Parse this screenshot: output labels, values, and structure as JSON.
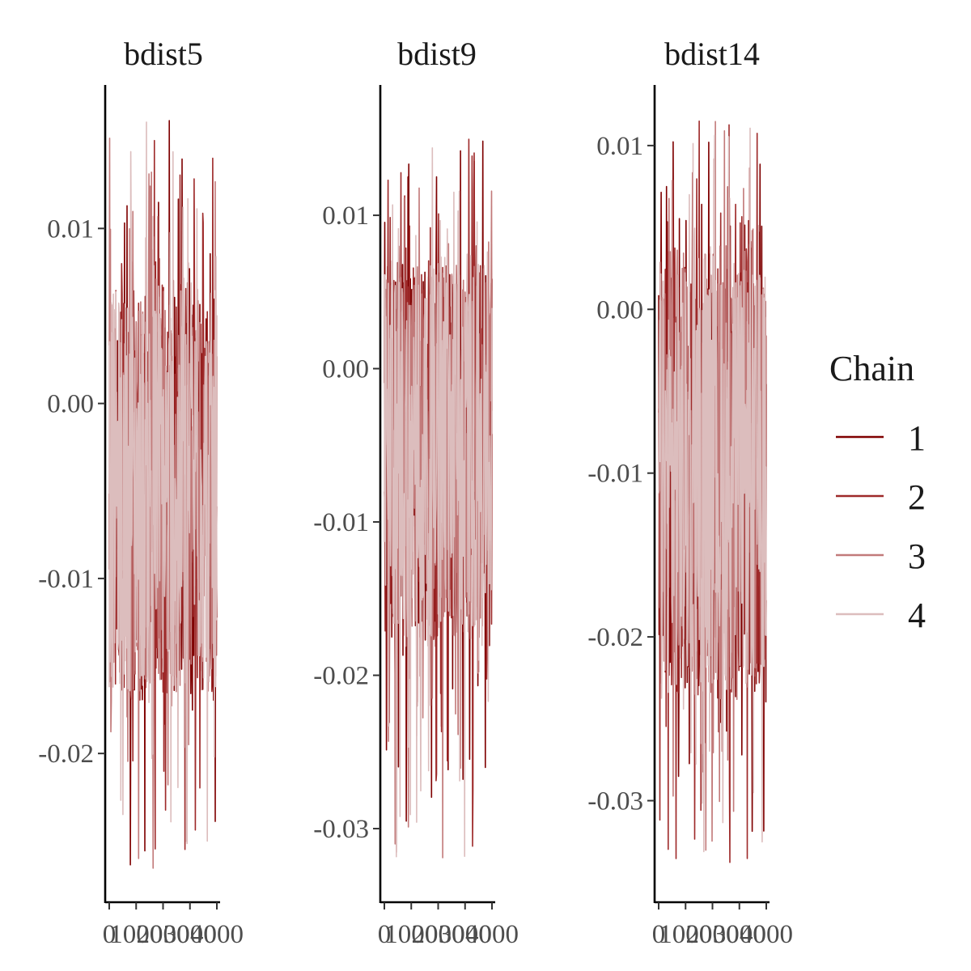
{
  "chart_data": {
    "type": "line",
    "x_ticks": [
      0,
      1000,
      2000,
      3000,
      4000
    ],
    "x_range": [
      0,
      4000
    ],
    "grid": false,
    "legend": {
      "title": "Chain",
      "placement": "right",
      "entries": [
        {
          "label": "1",
          "color": "#7f0000"
        },
        {
          "label": "2",
          "color": "#9e2a2a"
        },
        {
          "label": "3",
          "color": "#c27a7a"
        },
        {
          "label": "4",
          "color": "#dcbdbd"
        }
      ]
    },
    "panels": [
      {
        "title": "bdist5",
        "ylim": [
          -0.0285,
          0.0182
        ],
        "y_ticks": [
          0.01,
          0.0,
          -0.01,
          -0.02
        ],
        "y_tick_labels": [
          "0.01",
          "0.00",
          "-0.01",
          "-0.02"
        ],
        "core_range": [
          -0.0165,
          0.0065
        ],
        "max_excursion": [
          -0.0275,
          0.0163
        ]
      },
      {
        "title": "bdist9",
        "ylim": [
          -0.0348,
          0.0185
        ],
        "y_ticks": [
          0.01,
          0.0,
          -0.01,
          -0.02,
          -0.03
        ],
        "y_tick_labels": [
          "0.01",
          "0.00",
          "-0.01",
          "-0.02",
          "-0.03"
        ],
        "core_range": [
          -0.0175,
          0.0068
        ],
        "max_excursion": [
          -0.0325,
          0.0162
        ]
      },
      {
        "title": "bdist14",
        "ylim": [
          -0.0362,
          0.0137
        ],
        "y_ticks": [
          0.01,
          0.0,
          -0.01,
          -0.02,
          -0.03
        ],
        "y_tick_labels": [
          "0.01",
          "0.00",
          "-0.01",
          "-0.02",
          "-0.03"
        ],
        "core_range": [
          -0.0235,
          0.0025
        ],
        "max_excursion": [
          -0.034,
          0.0115
        ]
      }
    ]
  }
}
